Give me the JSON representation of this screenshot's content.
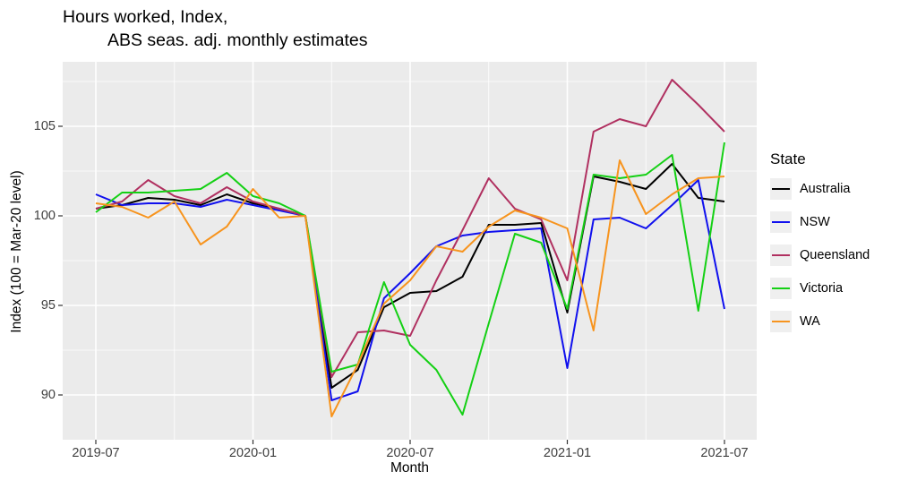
{
  "title": {
    "line1": "Hours worked, Index,",
    "line2": "ABS seas. adj. monthly estimates"
  },
  "axes": {
    "x_label": "Month",
    "y_label": "Index (100 = Mar-20 level)"
  },
  "legend": {
    "title": "State"
  },
  "chart_data": {
    "type": "line",
    "title": "Hours worked, Index, ABS seas. adj. monthly estimates",
    "xlabel": "Month",
    "ylabel": "Index (100 = Mar-20 level)",
    "x": [
      "2019-07",
      "2019-08",
      "2019-09",
      "2019-10",
      "2019-11",
      "2019-12",
      "2020-01",
      "2020-02",
      "2020-03",
      "2020-04",
      "2020-05",
      "2020-06",
      "2020-07",
      "2020-08",
      "2020-09",
      "2020-10",
      "2020-11",
      "2020-12",
      "2021-01",
      "2021-02",
      "2021-03",
      "2021-04",
      "2021-05",
      "2021-06",
      "2021-07"
    ],
    "x_tick_labels": [
      "2019-07",
      "2020-01",
      "2020-07",
      "2021-01",
      "2021-07"
    ],
    "y_ticks": [
      90,
      95,
      100,
      105
    ],
    "ylim": [
      87.4,
      108.6
    ],
    "grid": true,
    "legend_position": "right",
    "panel_bg": "#EBEBEB",
    "grid_color": "#FFFFFF",
    "tick_text_color": "#404040",
    "legend_key_bg": "#EFEFEF",
    "series": [
      {
        "name": "Australia",
        "color": "#000000",
        "values": [
          100.4,
          100.6,
          101.0,
          100.9,
          100.6,
          101.2,
          100.7,
          100.4,
          100.0,
          90.4,
          91.4,
          94.9,
          95.7,
          95.8,
          96.6,
          99.5,
          99.5,
          99.6,
          94.6,
          102.2,
          101.9,
          101.5,
          102.9,
          101.0,
          100.8
        ]
      },
      {
        "name": "NSW",
        "color": "#1010EE",
        "values": [
          101.2,
          100.6,
          100.7,
          100.7,
          100.5,
          100.9,
          100.6,
          100.3,
          100.0,
          89.7,
          90.2,
          95.4,
          96.8,
          98.3,
          98.9,
          99.1,
          99.2,
          99.3,
          91.5,
          99.8,
          99.9,
          99.3,
          100.6,
          102.0,
          94.8
        ]
      },
      {
        "name": "Queensland",
        "color": "#B03060",
        "values": [
          100.4,
          100.8,
          102.0,
          101.1,
          100.7,
          101.6,
          100.8,
          100.4,
          100.0,
          91.0,
          93.5,
          93.6,
          93.3,
          96.4,
          99.2,
          102.1,
          100.4,
          99.8,
          96.4,
          104.7,
          105.4,
          105.0,
          107.6,
          106.2,
          104.7
        ]
      },
      {
        "name": "Victoria",
        "color": "#14D014",
        "values": [
          100.2,
          101.3,
          101.3,
          101.4,
          101.5,
          102.4,
          101.1,
          100.7,
          100.0,
          91.3,
          91.7,
          96.3,
          92.8,
          91.4,
          88.9,
          94.0,
          99.0,
          98.5,
          94.8,
          102.3,
          102.1,
          102.3,
          103.4,
          94.7,
          104.1
        ]
      },
      {
        "name": "WA",
        "color": "#F7941E",
        "values": [
          100.7,
          100.5,
          99.9,
          100.8,
          98.4,
          99.4,
          101.5,
          99.9,
          100.0,
          88.8,
          91.7,
          95.1,
          96.4,
          98.3,
          98.0,
          99.4,
          100.3,
          99.9,
          99.3,
          93.6,
          103.1,
          100.1,
          101.2,
          102.1,
          102.2
        ]
      }
    ]
  }
}
